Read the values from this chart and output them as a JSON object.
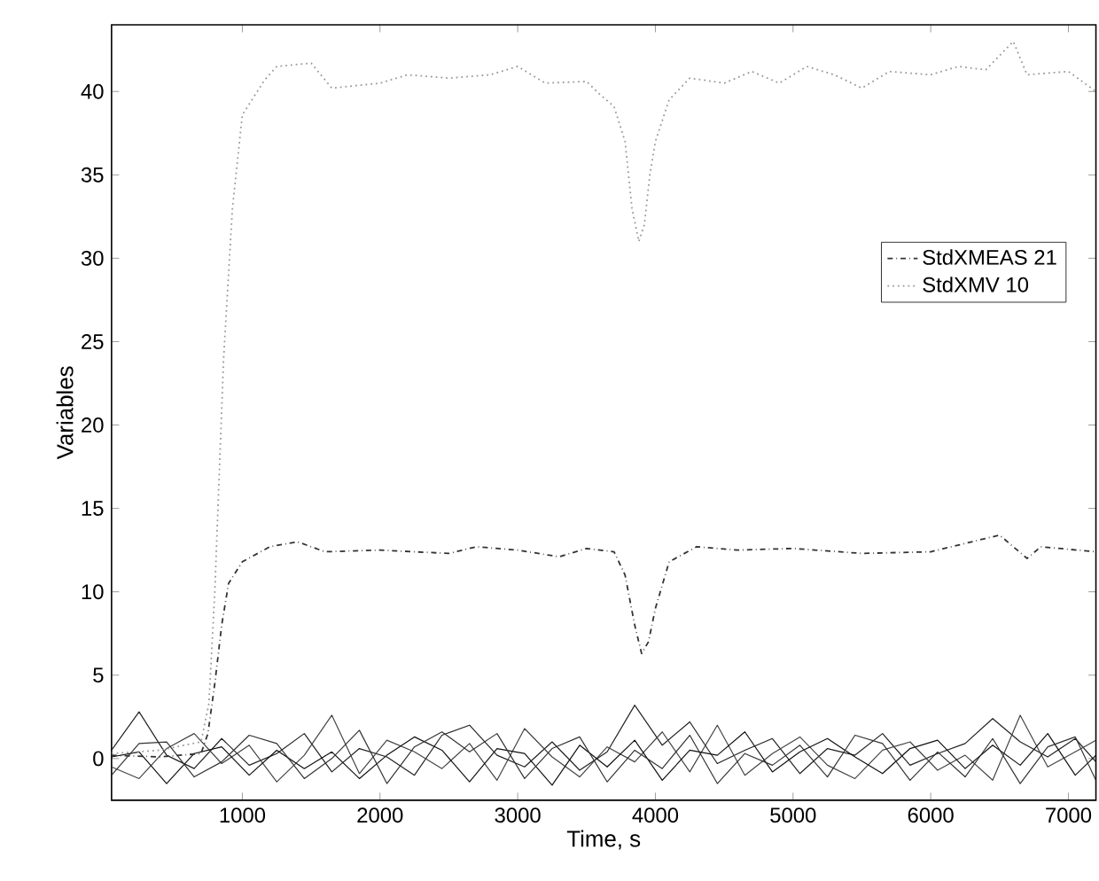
{
  "chart_data": {
    "type": "line",
    "xlabel": "Time, s",
    "ylabel": "Variables",
    "xlim": [
      50,
      7200
    ],
    "ylim": [
      -2.5,
      44
    ],
    "xticks": [
      1000,
      2000,
      3000,
      4000,
      5000,
      6000,
      7000
    ],
    "yticks": [
      0,
      5,
      10,
      15,
      20,
      25,
      30,
      35,
      40
    ],
    "grid": false,
    "legend": "right",
    "series": [
      {
        "color": "#222222",
        "line_style": "solid",
        "x": [
          50,
          250,
          450,
          650,
          850,
          1050,
          1250,
          1450,
          1650,
          1850,
          2050,
          2250,
          2450,
          2650,
          2850,
          3050,
          3250,
          3450,
          3650,
          3850,
          4050,
          4250,
          4450,
          4650,
          4850,
          5050,
          5250,
          5450,
          5650,
          5850,
          6050,
          6250,
          6450,
          6650,
          6850,
          7050,
          7200
        ],
        "values": [
          0.5,
          2.8,
          0.2,
          -0.6,
          1.2,
          -0.4,
          0.3,
          1.5,
          -0.8,
          0.6,
          0.1,
          -1.0,
          1.4,
          2.0,
          0.2,
          -0.5,
          1.0,
          -0.7,
          0.4,
          3.2,
          0.8,
          2.2,
          -0.3,
          0.5,
          1.2,
          -0.9,
          0.6,
          0.2,
          1.5,
          -0.4,
          0.3,
          0.9,
          2.4,
          1.0,
          0.1,
          1.2,
          -0.2
        ]
      },
      {
        "color": "#444444",
        "line_style": "solid",
        "x": [
          50,
          250,
          450,
          650,
          850,
          1050,
          1250,
          1450,
          1650,
          1850,
          2050,
          2250,
          2450,
          2650,
          2850,
          3050,
          3250,
          3450,
          3650,
          3850,
          4050,
          4250,
          4450,
          4650,
          4850,
          5050,
          5250,
          5450,
          5650,
          5850,
          6050,
          6250,
          6450,
          6650,
          6850,
          7050,
          7200
        ],
        "values": [
          -0.5,
          -1.2,
          0.6,
          1.5,
          -0.3,
          0.8,
          -1.4,
          0.2,
          2.6,
          -0.9,
          1.1,
          0.4,
          -0.6,
          0.9,
          -1.3,
          1.8,
          0.1,
          -1.1,
          0.7,
          -0.2,
          1.6,
          -0.8,
          2.0,
          -1.0,
          0.3,
          1.3,
          -0.4,
          -1.2,
          0.5,
          1.0,
          -0.7,
          0.2,
          -1.3,
          2.6,
          -0.5,
          0.4,
          1.1
        ]
      },
      {
        "color": "#111111",
        "line_style": "solid",
        "x": [
          50,
          250,
          450,
          650,
          850,
          1050,
          1250,
          1450,
          1650,
          1850,
          2050,
          2250,
          2450,
          2650,
          2850,
          3050,
          3250,
          3450,
          3650,
          3850,
          4050,
          4250,
          4450,
          4650,
          4850,
          5050,
          5250,
          5450,
          5650,
          5850,
          6050,
          6250,
          6450,
          6650,
          6850,
          7050,
          7200
        ],
        "values": [
          0.1,
          0.4,
          -1.5,
          0.3,
          0.7,
          -1.0,
          0.5,
          -0.6,
          0.4,
          -1.2,
          0.2,
          1.3,
          0.5,
          -1.4,
          0.6,
          0.3,
          -1.6,
          0.8,
          -0.5,
          1.1,
          -1.3,
          0.5,
          0.2,
          1.6,
          -0.8,
          0.4,
          1.2,
          0.1,
          -0.9,
          0.6,
          1.1,
          -0.6,
          0.8,
          -0.4,
          1.5,
          -1.0,
          0.2
        ]
      },
      {
        "color": "#333333",
        "line_style": "solid",
        "x": [
          50,
          250,
          450,
          650,
          850,
          1050,
          1250,
          1450,
          1650,
          1850,
          2050,
          2250,
          2450,
          2650,
          2850,
          3050,
          3250,
          3450,
          3650,
          3850,
          4050,
          4250,
          4450,
          4650,
          4850,
          5050,
          5250,
          5450,
          5650,
          5850,
          6050,
          6250,
          6450,
          6650,
          6850,
          7050,
          7200
        ],
        "values": [
          -1.0,
          0.9,
          1.0,
          -1.1,
          -0.2,
          1.4,
          0.9,
          -1.2,
          0.0,
          1.7,
          -1.5,
          0.7,
          1.6,
          0.4,
          1.5,
          -1.2,
          0.6,
          1.3,
          -1.4,
          0.5,
          -0.6,
          1.4,
          -1.5,
          0.3,
          -0.4,
          0.8,
          -1.1,
          1.4,
          0.9,
          -1.3,
          0.4,
          -1.1,
          1.2,
          -1.5,
          0.7,
          1.3,
          -1.3
        ]
      },
      {
        "name": "StdXMEAS 21",
        "color": "#333333",
        "line_style": "dashdot",
        "x": [
          50,
          400,
          700,
          750,
          800,
          850,
          900,
          1000,
          1200,
          1400,
          1600,
          2000,
          2500,
          2700,
          3000,
          3300,
          3500,
          3700,
          3780,
          3850,
          3900,
          3950,
          4000,
          4100,
          4300,
          4600,
          5000,
          5500,
          6000,
          6500,
          6700,
          6800,
          7200
        ],
        "values": [
          0.2,
          0.1,
          0.3,
          1.5,
          4.5,
          8,
          10.5,
          11.8,
          12.7,
          13,
          12.4,
          12.5,
          12.3,
          12.7,
          12.5,
          12.1,
          12.6,
          12.4,
          11,
          8,
          6.3,
          7,
          9,
          11.8,
          12.7,
          12.5,
          12.6,
          12.3,
          12.4,
          13.4,
          12,
          12.7,
          12.4
        ]
      },
      {
        "name": "StdXMV 10",
        "color": "#999999",
        "line_style": "dotted",
        "x": [
          50,
          400,
          700,
          757,
          800,
          864,
          928,
          1000,
          1163,
          1250,
          1500,
          1650,
          2000,
          2200,
          2500,
          2800,
          3000,
          3200,
          3500,
          3600,
          3700,
          3780,
          3830,
          3880,
          3920,
          3960,
          4000,
          4100,
          4250,
          4500,
          4700,
          4900,
          5100,
          5300,
          5500,
          5700,
          6000,
          6200,
          6400,
          6600,
          6700,
          7000,
          7200
        ],
        "values": [
          0.3,
          0.5,
          1,
          3.3,
          10,
          24,
          33,
          38.6,
          40.7,
          41.5,
          41.7,
          40.2,
          40.5,
          41,
          40.8,
          41,
          41.5,
          40.5,
          40.6,
          39.8,
          39.1,
          37,
          33,
          31,
          32,
          35,
          37,
          39.5,
          40.8,
          40.5,
          41.2,
          40.5,
          41.5,
          41,
          40.2,
          41.2,
          41,
          41.5,
          41.3,
          43,
          41,
          41.2,
          40
        ]
      }
    ]
  }
}
